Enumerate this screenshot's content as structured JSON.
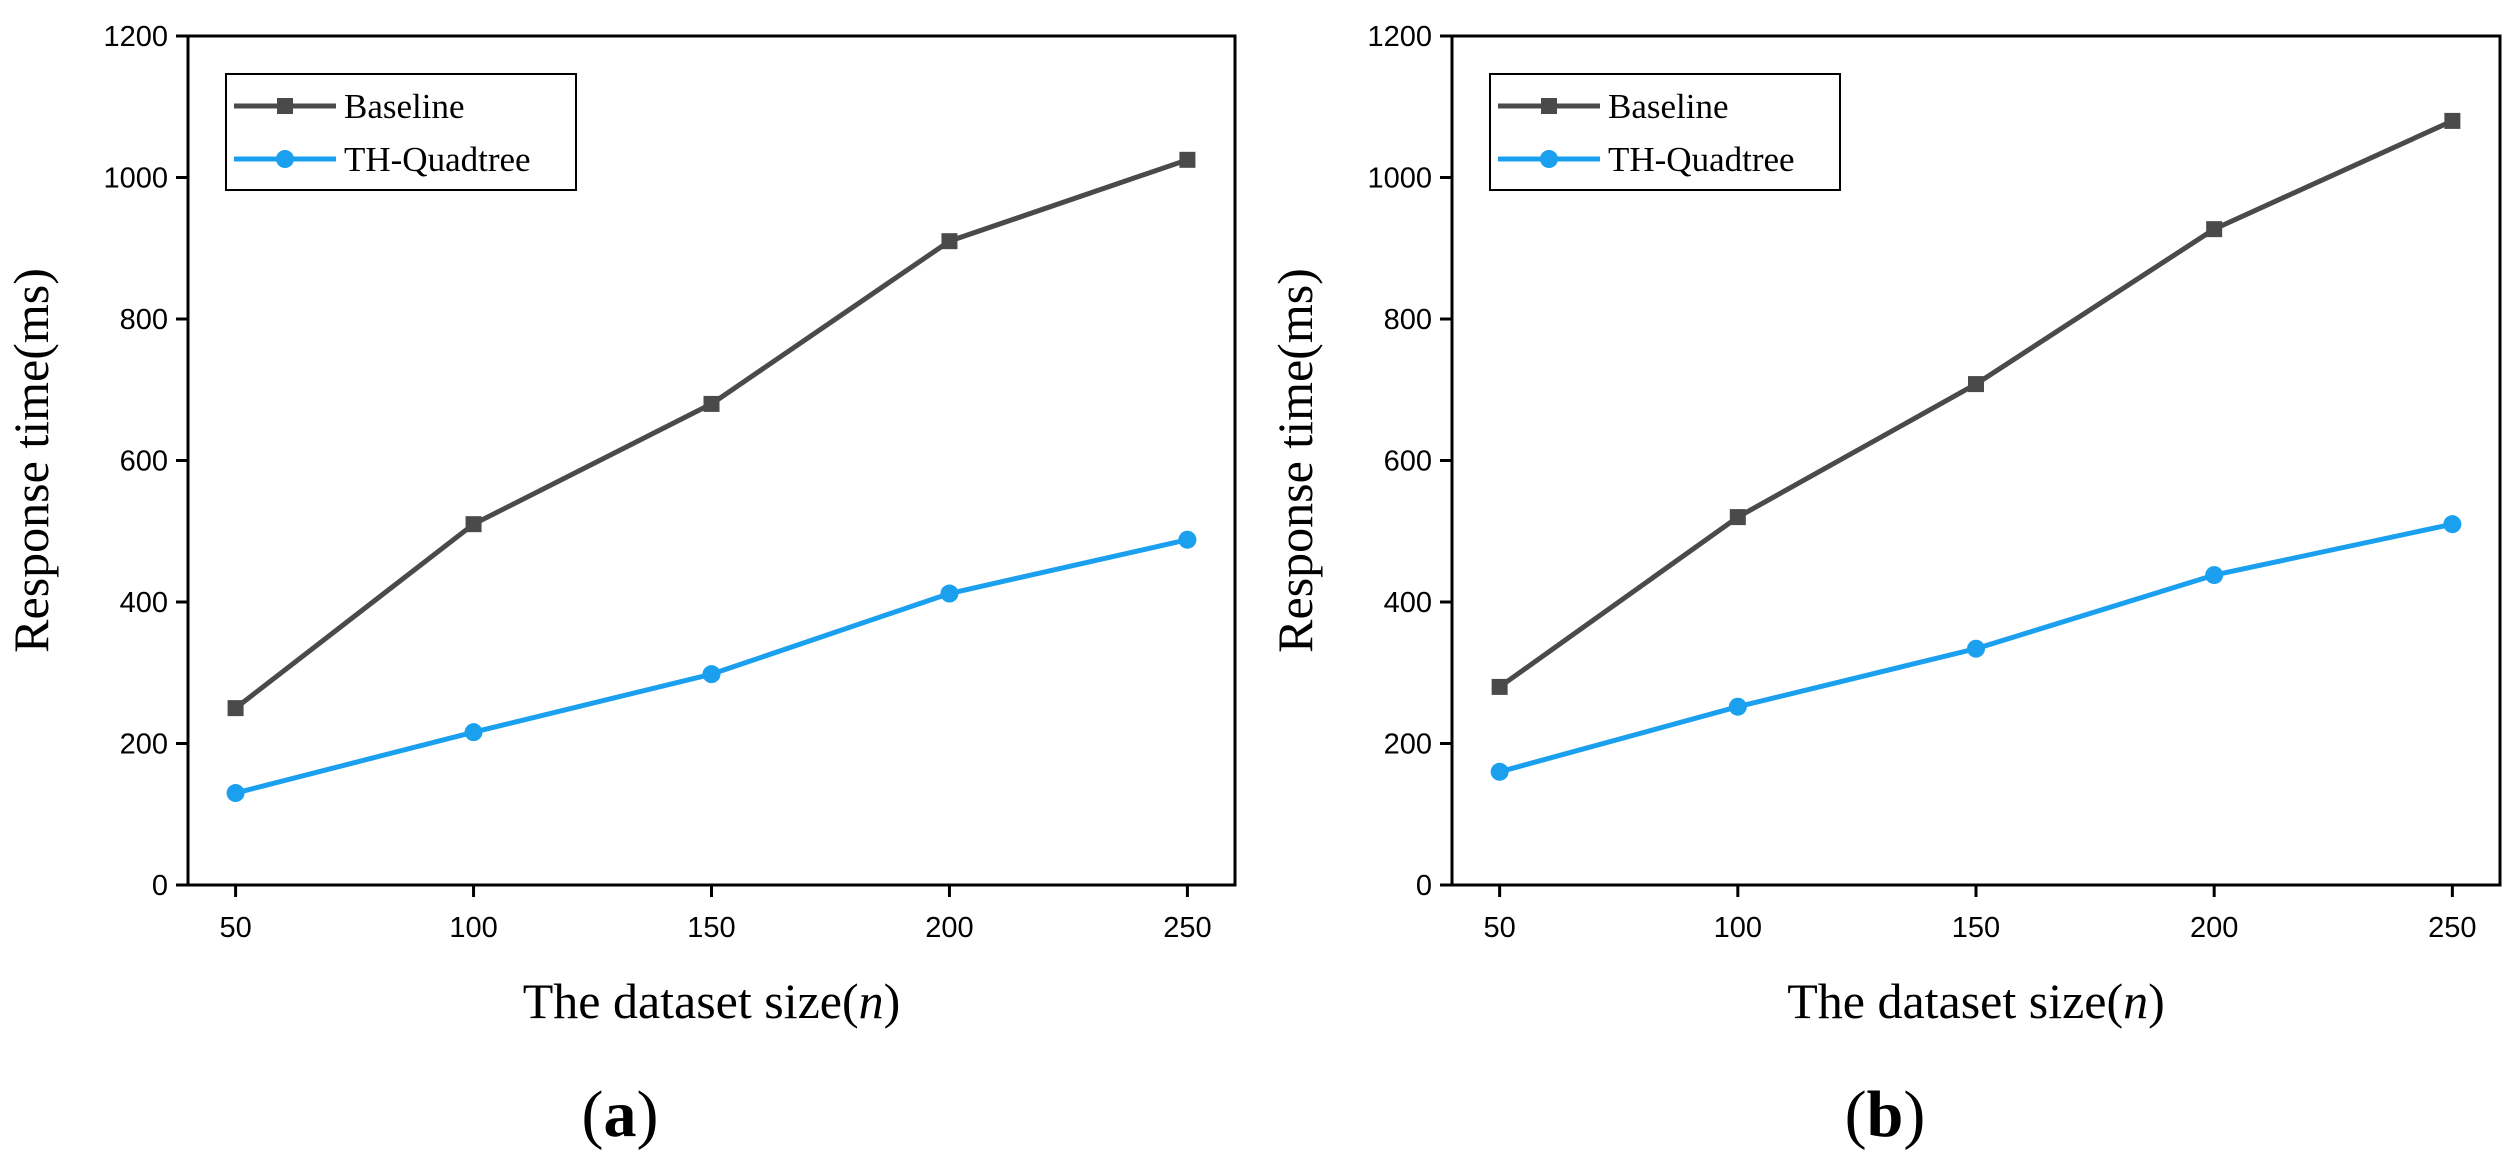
{
  "chart_data": [
    {
      "type": "line",
      "panel_label": "a",
      "x": [
        50,
        100,
        150,
        200,
        250
      ],
      "xticks": [
        "50",
        "100",
        "150",
        "200",
        "250"
      ],
      "xlim": [
        40,
        260
      ],
      "ylim": [
        0,
        1200
      ],
      "yticks": [
        "0",
        "200",
        "400",
        "600",
        "800",
        "1000",
        "1200"
      ],
      "ytick_values": [
        0,
        200,
        400,
        600,
        800,
        1000,
        1200
      ],
      "xlabel": "The dataset size(",
      "xlabel_var": "n",
      "xlabel_close": ")",
      "ylabel": "Response time(ms)",
      "legend_position": "top-left",
      "grid": false,
      "series": [
        {
          "name": "Baseline",
          "color": "#4a4a4a",
          "marker": "square",
          "values": [
            250,
            510,
            680,
            910,
            1025
          ]
        },
        {
          "name": "TH-Quadtree",
          "color": "#1aa0ef",
          "marker": "circle",
          "values": [
            130,
            216,
            298,
            412,
            488
          ]
        }
      ]
    },
    {
      "type": "line",
      "panel_label": "b",
      "x": [
        50,
        100,
        150,
        200,
        250
      ],
      "xticks": [
        "50",
        "100",
        "150",
        "200",
        "250"
      ],
      "xlim": [
        40,
        260
      ],
      "ylim": [
        0,
        1200
      ],
      "yticks": [
        "0",
        "200",
        "400",
        "600",
        "800",
        "1000",
        "1200"
      ],
      "ytick_values": [
        0,
        200,
        400,
        600,
        800,
        1000,
        1200
      ],
      "xlabel": "The dataset size(",
      "xlabel_var": "n",
      "xlabel_close": ")",
      "ylabel": "Response time(ms)",
      "legend_position": "top-left",
      "grid": false,
      "series": [
        {
          "name": "Baseline",
          "color": "#4a4a4a",
          "marker": "square",
          "values": [
            280,
            520,
            708,
            927,
            1080
          ]
        },
        {
          "name": "TH-Quadtree",
          "color": "#1aa0ef",
          "marker": "circle",
          "values": [
            160,
            252,
            334,
            438,
            510
          ]
        }
      ]
    }
  ]
}
